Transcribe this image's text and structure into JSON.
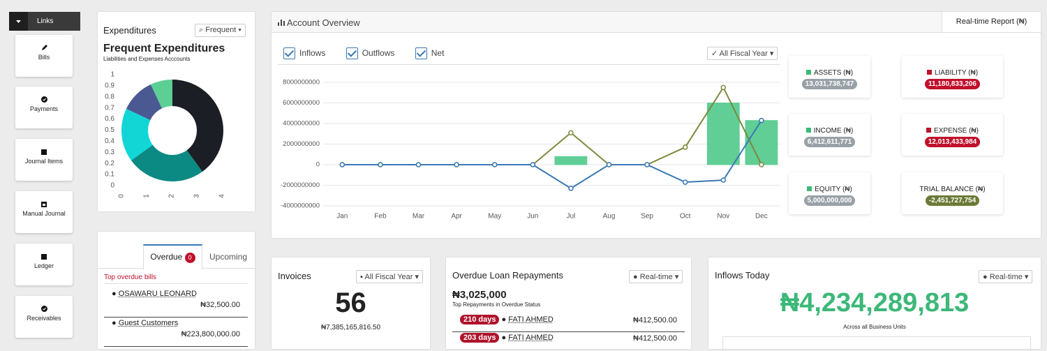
{
  "sidebar": {
    "title": "Links",
    "items": [
      "Bills",
      "Payments",
      "Journal Items",
      "Manual Journal",
      "Ledger",
      "Receivables"
    ]
  },
  "expenditures": {
    "title": "Expenditures",
    "filter": "Frequent"
  },
  "bills": {
    "tabs": [
      {
        "label": "Overdue",
        "badge": 0
      },
      {
        "label": "Upcoming"
      }
    ],
    "heading": "Top overdue bills",
    "rows": [
      {
        "name": "OSAWARU LEONARD",
        "amount": "₦32,500.00"
      },
      {
        "name": "Guest Customers",
        "amount": "₦223,800,000.00"
      }
    ]
  },
  "overview": {
    "title": "Account Overview",
    "report_tab": "Real-time Report (₦)",
    "period": "All Fiscal Year",
    "cards": [
      {
        "label": "ASSETS (₦)",
        "value": "13,031,738,747"
      },
      {
        "label": "LIABILITY (₦)",
        "value": "11,180,833,206"
      },
      {
        "label": "INCOME (₦)",
        "value": "6,412,611,771"
      },
      {
        "label": "EXPENSE (₦)",
        "value": "12,013,433,984"
      },
      {
        "label": "EQUITY (₦)",
        "value": "5,000,000,000"
      },
      {
        "label": "TRIAL BALANCE (₦)",
        "value": "-2,451,727,754"
      }
    ]
  },
  "invoices": {
    "title": "Invoices",
    "period": "All Fiscal Year",
    "count": 56,
    "total": "₦7,385,165,816.50"
  },
  "loans": {
    "title": "Overdue Loan Repayments",
    "period": "Real-time",
    "total": "₦3,025,000",
    "subtitle": "Top Repayments in Overdue Status",
    "rows": [
      {
        "days": "210 days",
        "name": "FATI AHMED",
        "amount": "₦412,500.00"
      },
      {
        "days": "203 days",
        "name": "FATI AHMED",
        "amount": "₦412,500.00"
      }
    ]
  },
  "inflows_today": {
    "title": "Inflows Today",
    "period": "Real-time",
    "amount": "₦4,234,289,813",
    "subtitle": "Across all Business Units"
  },
  "chart_data": [
    {
      "type": "doughnut",
      "title": "Frequent Expenditures",
      "subtitle": "Liabilities and Expenses Acccounts",
      "categories": [
        null,
        null,
        null,
        null,
        null
      ],
      "values": [
        40,
        25,
        17,
        11,
        7
      ],
      "colors": [
        "#1b1e25",
        "#0b8a83",
        "#12d6d6",
        "#4b5993",
        "#5ccf94"
      ],
      "xlim": [
        0,
        4
      ],
      "xticks": [
        0,
        1,
        2,
        3,
        4
      ],
      "ylim": [
        0,
        1
      ],
      "yticks": [
        0,
        0.1,
        0.2,
        0.3,
        0.4,
        0.5,
        0.6,
        0.7,
        0.8,
        0.9,
        1
      ]
    },
    {
      "type": "combo",
      "categories": [
        "Jan",
        "Feb",
        "Mar",
        "Apr",
        "May",
        "Jun",
        "Jul",
        "Aug",
        "Sep",
        "Oct",
        "Nov",
        "Dec"
      ],
      "ylim": [
        -4000000000,
        8000000000
      ],
      "yticks": [
        -4000000000,
        -2000000000,
        0,
        2000000000,
        4000000000,
        6000000000,
        8000000000
      ],
      "grid": true,
      "series": [
        {
          "name": "Inflows",
          "type": "bar",
          "color": "#4fc98a",
          "values": [
            0,
            0,
            0,
            0,
            0,
            0,
            800000000,
            0,
            0,
            0,
            6000000000,
            4300000000
          ]
        },
        {
          "name": "Outflows",
          "type": "line",
          "color": "#7a8a3c",
          "values": [
            0,
            0,
            0,
            0,
            0,
            0,
            3100000000,
            0,
            0,
            1700000000,
            7500000000,
            0
          ]
        },
        {
          "name": "Net",
          "type": "line",
          "color": "#3a78b4",
          "values": [
            0,
            0,
            0,
            0,
            0,
            0,
            -2300000000,
            0,
            0,
            -1700000000,
            -1500000000,
            4300000000
          ]
        }
      ]
    }
  ]
}
